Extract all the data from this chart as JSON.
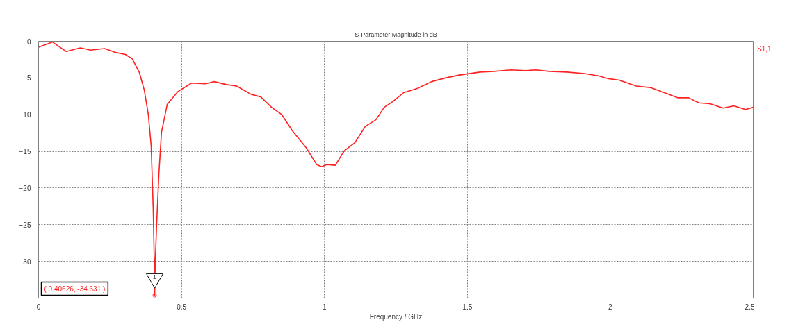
{
  "chart_data": {
    "type": "line",
    "title": "S-Parameter Magnitude in dB",
    "xlabel": "Frequency / GHz",
    "xlim": [
      0,
      2.5
    ],
    "xticks": [
      0,
      0.5,
      1,
      1.5,
      2,
      2.5
    ],
    "ylim": [
      -35,
      0
    ],
    "yticks": [
      0,
      -5,
      -10,
      -15,
      -20,
      -25,
      -30
    ],
    "grid": true,
    "line_style": "solid",
    "marker": "none",
    "series": [
      {
        "name": "S1,1",
        "color": "#ff2020",
        "x": [
          0,
          0.049,
          0.097,
          0.146,
          0.182,
          0.231,
          0.267,
          0.304,
          0.328,
          0.353,
          0.37,
          0.384,
          0.394,
          0.401,
          0.405,
          0.40626,
          0.408,
          0.413,
          0.421,
          0.43,
          0.45,
          0.486,
          0.535,
          0.584,
          0.615,
          0.657,
          0.693,
          0.742,
          0.778,
          0.815,
          0.851,
          0.888,
          0.936,
          0.973,
          0.99,
          1.009,
          1.038,
          1.07,
          1.107,
          1.143,
          1.18,
          1.209,
          1.24,
          1.277,
          1.326,
          1.375,
          1.423,
          1.472,
          1.545,
          1.593,
          1.654,
          1.702,
          1.739,
          1.787,
          1.848,
          1.909,
          1.958,
          1.994,
          2.031,
          2.091,
          2.14,
          2.189,
          2.237,
          2.274,
          2.31,
          2.347,
          2.395,
          2.432,
          2.473,
          2.5
        ],
        "values": [
          -0.8,
          -0.1,
          -1.4,
          -0.9,
          -1.2,
          -1.0,
          -1.5,
          -1.8,
          -2.4,
          -4.3,
          -6.7,
          -10,
          -14.3,
          -22.8,
          -30.4,
          -34.631,
          -30.4,
          -25,
          -18,
          -12.4,
          -8.6,
          -6.9,
          -5.7,
          -5.8,
          -5.5,
          -5.9,
          -6.1,
          -7.2,
          -7.6,
          -9.0,
          -10.0,
          -12.2,
          -14.5,
          -16.8,
          -17.1,
          -16.8,
          -16.9,
          -14.9,
          -13.8,
          -11.6,
          -10.7,
          -9.0,
          -8.2,
          -7.0,
          -6.4,
          -5.5,
          -5.0,
          -4.6,
          -4.2,
          -4.1,
          -3.9,
          -4.0,
          -3.9,
          -4.1,
          -4.2,
          -4.4,
          -4.7,
          -5.1,
          -5.3,
          -6.1,
          -6.3,
          -7.0,
          -7.7,
          -7.7,
          -8.4,
          -8.5,
          -9.1,
          -8.8,
          -9.3,
          -9.0
        ]
      }
    ],
    "annotations": [
      {
        "text": "1",
        "x": 0.40626,
        "y": -34.631
      },
      "( 0.40626, -34.631 )"
    ]
  }
}
